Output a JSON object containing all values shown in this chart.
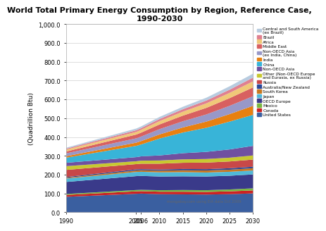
{
  "title": "World Total Primary Energy Consumption by Region, Reference Case,\n1990-2030",
  "ylabel": "(Quadrillion Btu)",
  "years": [
    1990,
    2005,
    2006,
    2010,
    2015,
    2020,
    2025,
    2030
  ],
  "xtick_labels": [
    "1990",
    "2005",
    "2006",
    "2010",
    "2015",
    "2020",
    "2025",
    "2030"
  ],
  "ylim": [
    0,
    1000
  ],
  "yticks": [
    0,
    100,
    200,
    300,
    400,
    500,
    600,
    700,
    800,
    900,
    1000
  ],
  "regions": [
    "United States",
    "Canada",
    "Mexico",
    "OECD Europe",
    "Japan",
    "South Korea",
    "Australia/New Zealand",
    "Russia",
    "Other (Non-OECD Europe\nand Eurasia, ex Russia)",
    "Non-OECD Asia",
    "China",
    "India",
    "Non-OECD Asia\n(ex India, China)",
    "Middle East",
    "Africa",
    "Brazil",
    "Central and South America\n(ex Brazil)"
  ],
  "colors": [
    "#3a5fa0",
    "#cc2222",
    "#7ab840",
    "#3a3a8a",
    "#50b8d8",
    "#c87820",
    "#2a4898",
    "#c84848",
    "#c8c830",
    "#7050a0",
    "#38b4d8",
    "#e88010",
    "#9898c8",
    "#d86060",
    "#f0c878",
    "#e08090",
    "#b8cce0"
  ],
  "data": {
    "United States": [
      84,
      100,
      101,
      98,
      97,
      96,
      98,
      102
    ],
    "Canada": [
      10,
      13,
      13,
      13,
      14,
      14,
      15,
      16
    ],
    "Mexico": [
      5,
      7,
      7,
      8,
      9,
      9,
      10,
      11
    ],
    "OECD Europe": [
      64,
      74,
      74,
      73,
      73,
      73,
      73,
      74
    ],
    "Japan": [
      18,
      22,
      22,
      22,
      22,
      21,
      21,
      21
    ],
    "South Korea": [
      4,
      8,
      8,
      9,
      10,
      11,
      11,
      12
    ],
    "Australia/New Zealand": [
      4,
      6,
      6,
      6,
      7,
      7,
      8,
      8
    ],
    "Russia": [
      38,
      28,
      29,
      31,
      33,
      35,
      36,
      38
    ],
    "Other (Non-OECD Europe\nand Eurasia, ex Russia)": [
      20,
      15,
      16,
      17,
      18,
      19,
      20,
      22
    ],
    "Non-OECD Asia": [
      18,
      22,
      23,
      27,
      33,
      38,
      44,
      51
    ],
    "China": [
      27,
      60,
      63,
      90,
      110,
      128,
      148,
      165
    ],
    "India": [
      8,
      17,
      18,
      22,
      27,
      33,
      40,
      48
    ],
    "Non-OECD Asia\n(ex India, China)": [
      15,
      23,
      24,
      28,
      33,
      38,
      44,
      51
    ],
    "Middle East": [
      10,
      20,
      21,
      25,
      30,
      35,
      41,
      47
    ],
    "Africa": [
      10,
      14,
      15,
      18,
      21,
      24,
      28,
      32
    ],
    "Brazil": [
      5,
      9,
      9,
      11,
      13,
      15,
      17,
      20
    ],
    "Central and South America\n(ex Brazil)": [
      5,
      9,
      9,
      11,
      13,
      15,
      18,
      21
    ]
  },
  "annotation": "mongabay.com using EIA data Oct 2009"
}
